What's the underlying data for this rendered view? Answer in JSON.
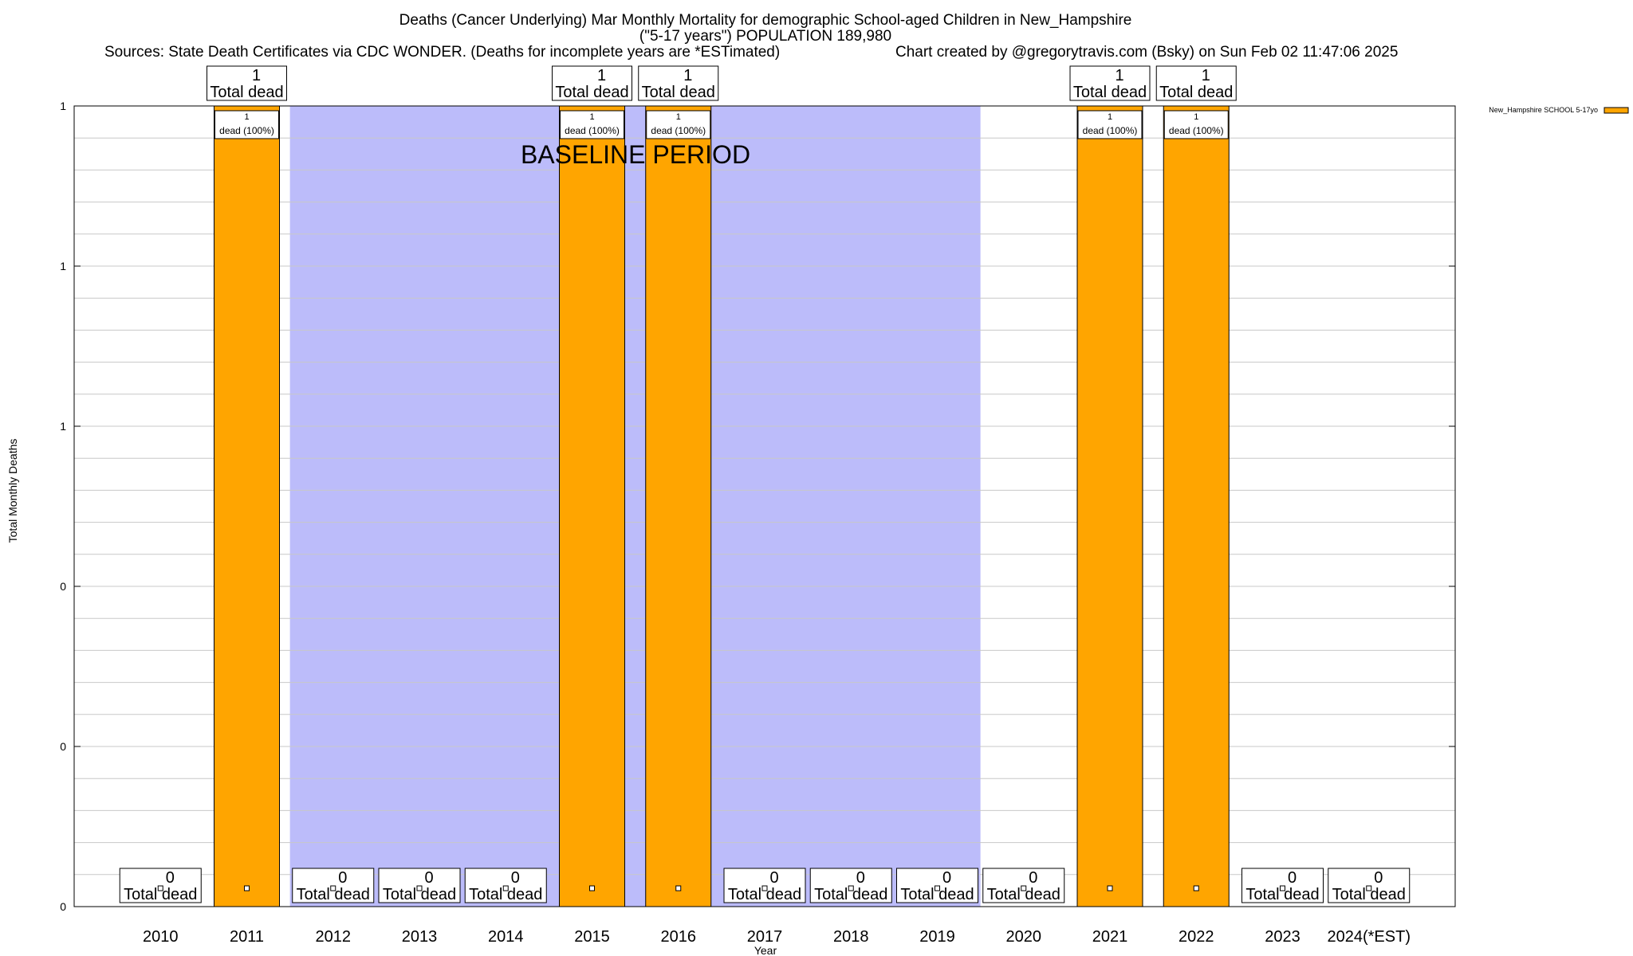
{
  "chart_data": {
    "type": "bar",
    "title_lines": [
      "Deaths (Cancer Underlying) Mar Monthly Mortality for demographic School-aged Children in New_Hampshire",
      "(\"5-17 years\") POPULATION 189,980"
    ],
    "sources": "Sources: State Death Certificates via CDC WONDER. (Deaths for incomplete years are *ESTimated)",
    "credit": "Chart created by @gregorytravis.com (Bsky) on Sun Feb 02 11:47:06 2025",
    "xlabel": "Year",
    "ylabel": "Total Monthly Deaths",
    "categories": [
      "2010",
      "2011",
      "2012",
      "2013",
      "2014",
      "2015",
      "2016",
      "2017",
      "2018",
      "2019",
      "2020",
      "2021",
      "2022",
      "2023",
      "2024(*EST)"
    ],
    "series": [
      {
        "name": "New_Hampshire SCHOOL 5-17yo",
        "color": "#ffa500",
        "values": [
          0,
          1,
          0,
          0,
          0,
          1,
          1,
          0,
          0,
          0,
          0,
          1,
          1,
          0,
          0
        ]
      }
    ],
    "ylim": [
      0,
      1
    ],
    "yticks": [
      {
        "value": 0,
        "label": "0"
      },
      {
        "value": 0.2,
        "label": "0"
      },
      {
        "value": 0.4,
        "label": "0"
      },
      {
        "value": 0.6,
        "label": "1"
      },
      {
        "value": 0.8,
        "label": "1"
      },
      {
        "value": 1.0,
        "label": "1"
      }
    ],
    "total_label": "Total dead",
    "segment_label": "dead (100%)",
    "baseline_label": "BASELINE PERIOD",
    "baseline_range": [
      "2012",
      "2019"
    ],
    "baseline_color": "#bcbcfa",
    "grid": true,
    "legend_position": "top-right"
  }
}
